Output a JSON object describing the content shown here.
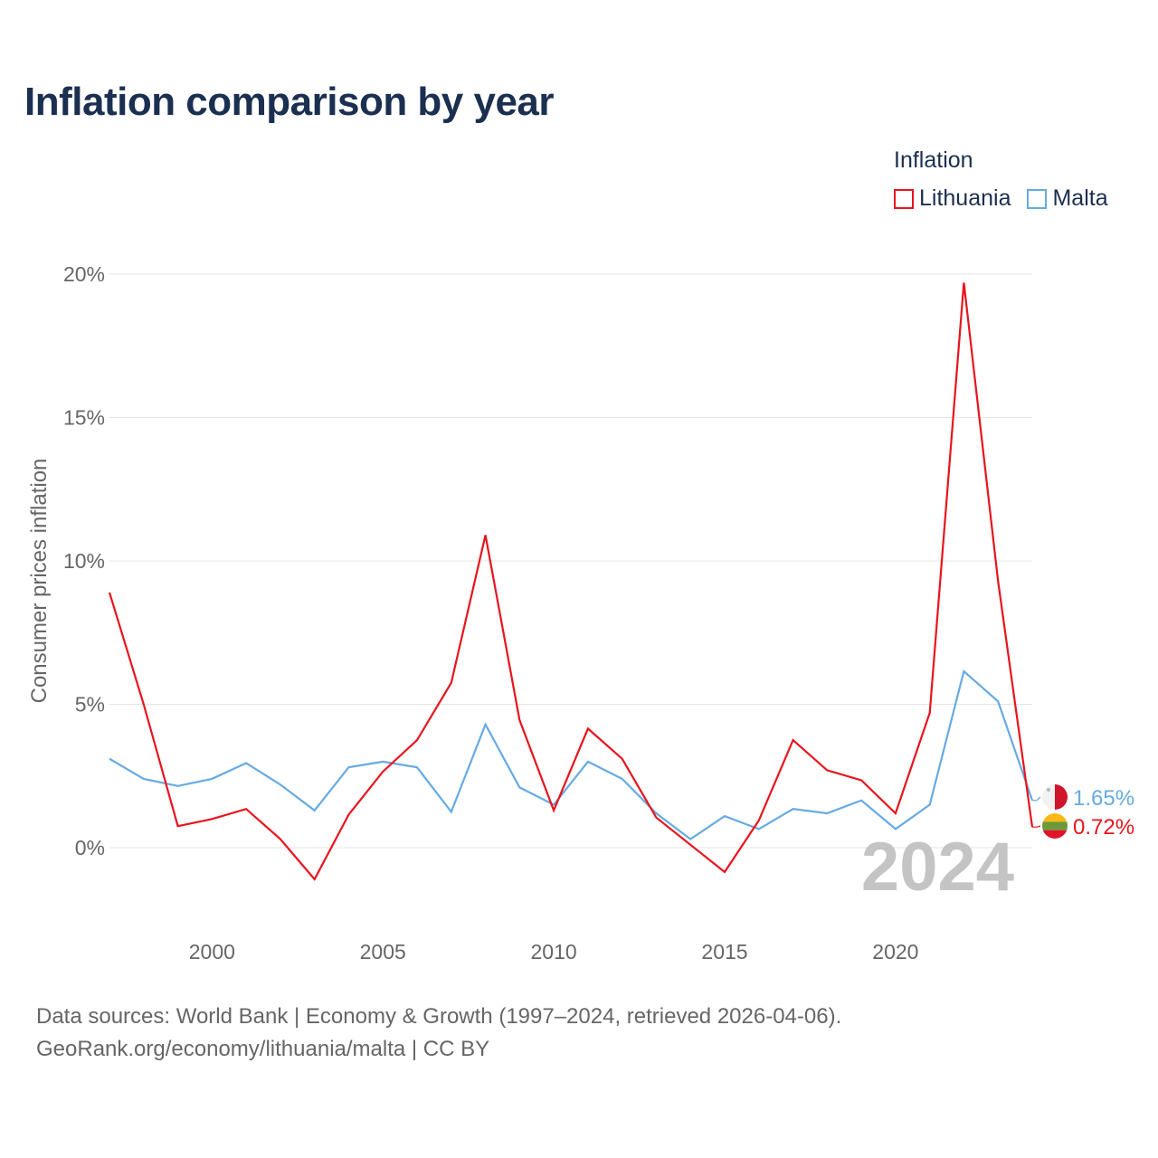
{
  "title": "Inflation comparison by year",
  "legend": {
    "title": "Inflation",
    "items": [
      {
        "label": "Lithuania",
        "color": "#e8141c"
      },
      {
        "label": "Malta",
        "color": "#66aae2"
      }
    ]
  },
  "chart_data": {
    "type": "line",
    "title": "Inflation comparison by year",
    "xlabel": "",
    "ylabel": "Consumer prices inflation",
    "x": [
      1997,
      1998,
      1999,
      2000,
      2001,
      2002,
      2003,
      2004,
      2005,
      2006,
      2007,
      2008,
      2009,
      2010,
      2011,
      2012,
      2013,
      2014,
      2015,
      2016,
      2017,
      2018,
      2019,
      2020,
      2021,
      2022,
      2023,
      2024
    ],
    "xlim": [
      1997,
      2024
    ],
    "ylim": [
      -2.5,
      20
    ],
    "y_ticks": [
      0,
      5,
      10,
      15,
      20
    ],
    "y_tick_labels": [
      "0%",
      "5%",
      "10%",
      "15%",
      "20%"
    ],
    "x_ticks": [
      2000,
      2005,
      2010,
      2015,
      2020
    ],
    "x_tick_labels": [
      "2000",
      "2005",
      "2010",
      "2015",
      "2020"
    ],
    "grid": true,
    "series": [
      {
        "name": "Lithuania",
        "color": "#e8141c",
        "values": [
          8.9,
          5.0,
          0.75,
          1.0,
          1.35,
          0.3,
          -1.1,
          1.15,
          2.65,
          3.75,
          5.75,
          10.9,
          4.45,
          1.3,
          4.15,
          3.1,
          1.05,
          0.1,
          -0.85,
          0.95,
          3.75,
          2.7,
          2.35,
          1.2,
          4.7,
          19.7,
          9.3,
          0.72
        ],
        "end_label": "0.72%"
      },
      {
        "name": "Malta",
        "color": "#66aae2",
        "values": [
          3.1,
          2.4,
          2.15,
          2.4,
          2.95,
          2.2,
          1.3,
          2.8,
          3.0,
          2.8,
          1.25,
          4.3,
          2.1,
          1.5,
          3.0,
          2.4,
          1.2,
          0.3,
          1.1,
          0.65,
          1.35,
          1.2,
          1.65,
          0.65,
          1.5,
          6.15,
          5.1,
          1.65
        ],
        "end_label": "1.65%"
      }
    ],
    "annotation": "2024"
  },
  "footer": {
    "line1": "Data sources: World Bank | Economy & Growth (1997–2024, retrieved 2026-04-06).",
    "line2": "GeoRank.org/economy/lithuania/malta | CC BY"
  }
}
